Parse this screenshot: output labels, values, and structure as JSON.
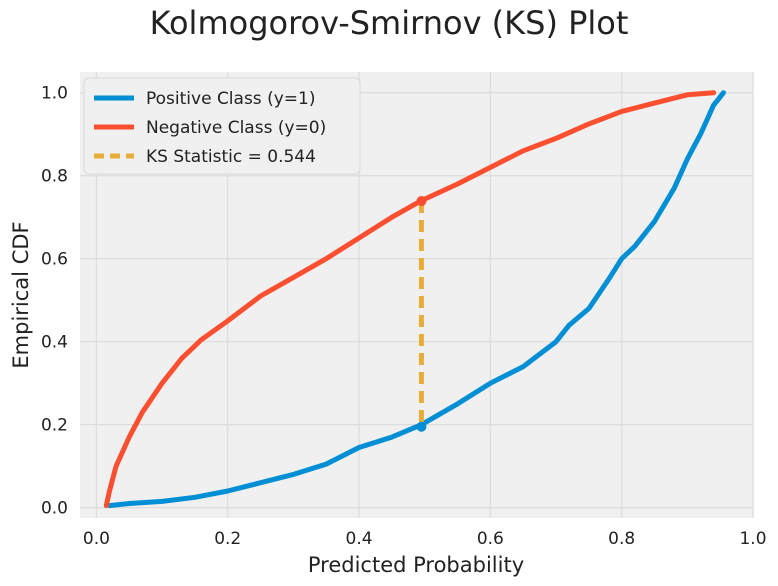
{
  "chart_data": {
    "type": "line",
    "title": "Kolmogorov-Smirnov (KS) Plot",
    "xlabel": "Predicted Probability",
    "ylabel": "Empirical CDF",
    "xlim": [
      -0.025,
      1.0
    ],
    "ylim": [
      -0.025,
      1.05
    ],
    "xticks": [
      0.0,
      0.2,
      0.4,
      0.6,
      0.8,
      1.0
    ],
    "xtick_labels": [
      "0.0",
      "0.2",
      "0.4",
      "0.6",
      "0.8",
      "1.0"
    ],
    "yticks": [
      0.0,
      0.2,
      0.4,
      0.6,
      0.8,
      1.0
    ],
    "ytick_labels": [
      "0.0",
      "0.2",
      "0.4",
      "0.6",
      "0.8",
      "1.0"
    ],
    "grid": true,
    "legend_position": "top-left",
    "series": [
      {
        "name": "Positive Class (y=1)",
        "color": "#008fd5",
        "x": [
          0.02,
          0.05,
          0.1,
          0.15,
          0.2,
          0.25,
          0.3,
          0.35,
          0.4,
          0.45,
          0.495,
          0.55,
          0.6,
          0.65,
          0.7,
          0.72,
          0.75,
          0.78,
          0.8,
          0.82,
          0.85,
          0.88,
          0.9,
          0.92,
          0.94,
          0.955
        ],
        "y": [
          0.005,
          0.01,
          0.015,
          0.025,
          0.04,
          0.06,
          0.08,
          0.105,
          0.145,
          0.17,
          0.2,
          0.25,
          0.3,
          0.34,
          0.4,
          0.44,
          0.48,
          0.55,
          0.6,
          0.63,
          0.69,
          0.77,
          0.84,
          0.9,
          0.97,
          1.0
        ]
      },
      {
        "name": "Negative Class (y=0)",
        "color": "#fc4f30",
        "x": [
          0.015,
          0.02,
          0.03,
          0.05,
          0.07,
          0.1,
          0.13,
          0.16,
          0.2,
          0.25,
          0.3,
          0.35,
          0.4,
          0.45,
          0.495,
          0.55,
          0.6,
          0.65,
          0.7,
          0.75,
          0.8,
          0.85,
          0.9,
          0.94
        ],
        "y": [
          0.005,
          0.04,
          0.1,
          0.17,
          0.23,
          0.3,
          0.36,
          0.405,
          0.45,
          0.51,
          0.555,
          0.6,
          0.65,
          0.7,
          0.74,
          0.78,
          0.82,
          0.86,
          0.89,
          0.925,
          0.955,
          0.975,
          0.995,
          1.0
        ]
      }
    ],
    "ks_statistic": {
      "name": "KS Statistic = 0.544",
      "color": "#e5ae38",
      "x": 0.495,
      "y_low": 0.195,
      "y_high": 0.739
    }
  }
}
